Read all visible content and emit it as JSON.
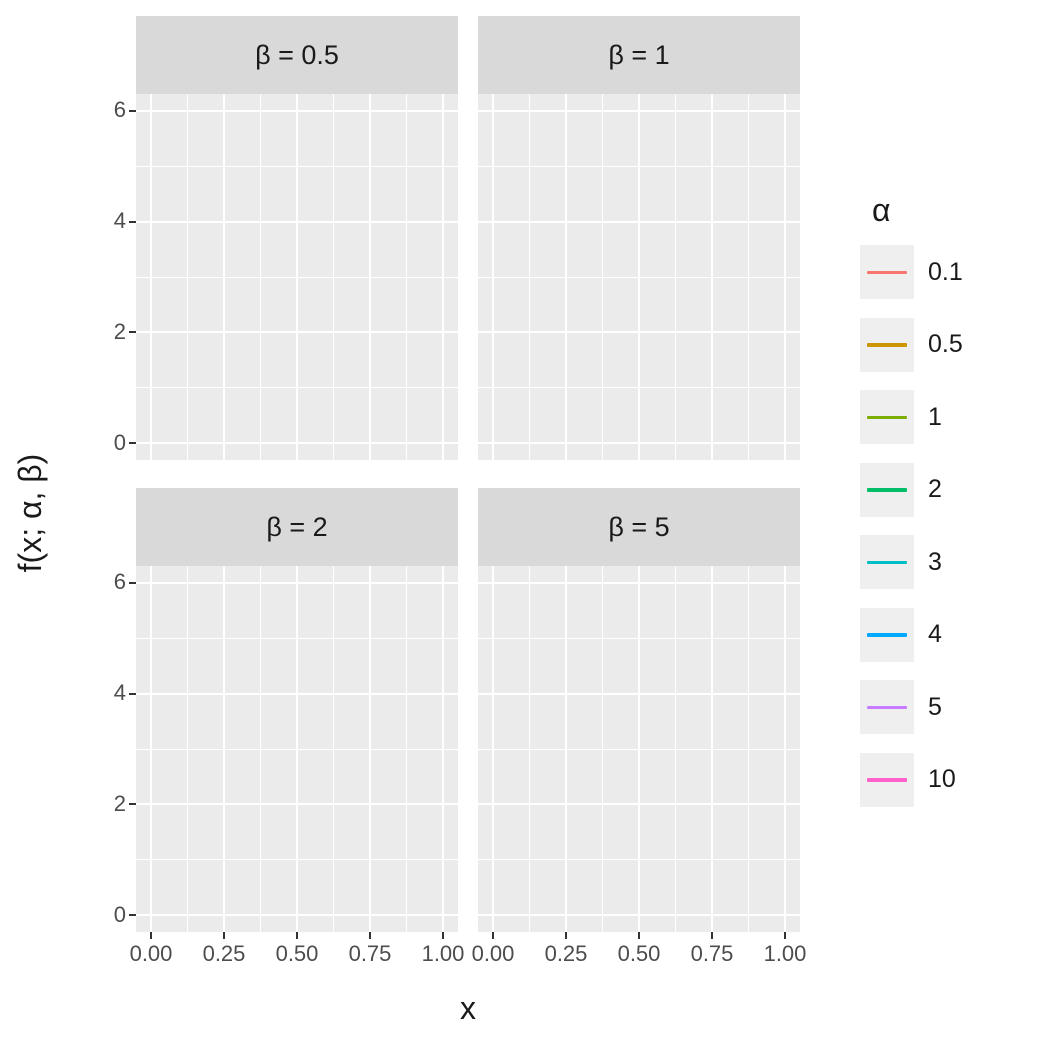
{
  "chart_data": {
    "type": "line",
    "title": "",
    "xlabel": "x",
    "ylabel": "f(x; α, β)",
    "facet_variable": "β",
    "facets": [
      {
        "label": "β = 0.5"
      },
      {
        "label": "β = 1"
      },
      {
        "label": "β = 2"
      },
      {
        "label": "β = 5"
      }
    ],
    "x_ticks": [
      "0.00",
      "0.25",
      "0.50",
      "0.75",
      "1.00"
    ],
    "y_ticks": [
      "0",
      "2",
      "4",
      "6"
    ],
    "xlim": [
      0,
      1
    ],
    "ylim": [
      0,
      6
    ],
    "grid": "on",
    "legend_position": "right",
    "legend": {
      "title": "α",
      "entries": [
        {
          "label": "0.1",
          "color": "#F8766D"
        },
        {
          "label": "0.5",
          "color": "#CD9600"
        },
        {
          "label": "1",
          "color": "#7CAE00"
        },
        {
          "label": "2",
          "color": "#00BE67"
        },
        {
          "label": "3",
          "color": "#00BFC4"
        },
        {
          "label": "4",
          "color": "#00A9FF"
        },
        {
          "label": "5",
          "color": "#C77CFF"
        },
        {
          "label": "10",
          "color": "#FF61CC"
        }
      ]
    },
    "series": []
  },
  "colors": {
    "panel_background": "#EBEBEB",
    "strip_background": "#D9D9D9",
    "gridline": "#FFFFFF",
    "tick_text": "#4D4D4D",
    "text": "#1A1A1A"
  }
}
